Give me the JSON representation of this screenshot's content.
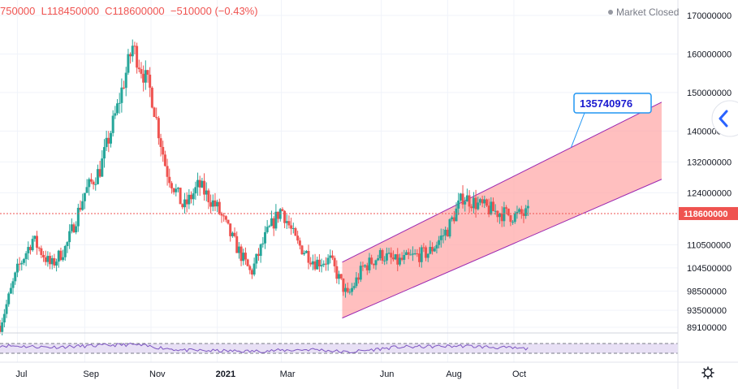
{
  "header": {
    "ohlc_text": "750000  L118450000  C118600000  −510000 (−0.43%)",
    "market_status": "Market Closed"
  },
  "colors": {
    "up": "#26a69a",
    "down": "#ef5350",
    "channel_fill": "#ffaaaa",
    "channel_line": "#9c27b0",
    "rsi_line": "#7e57c2",
    "rsi_band": "#e8e0f5",
    "last_price": "#ef5350",
    "callout_border": "#2196f3"
  },
  "icons": {
    "nav_button": "chevron-left-icon",
    "settings": "gear-icon",
    "status_dot": "dot-icon"
  },
  "chart_data": {
    "type": "candlestick",
    "symbol_last": 118600000,
    "y_axis": {
      "ylim": [
        88500000,
        172000000
      ],
      "ticks": [
        {
          "value": 170000000,
          "label": "170000000"
        },
        {
          "value": 160000000,
          "label": "160000000"
        },
        {
          "value": 150000000,
          "label": "150000000"
        },
        {
          "value": 140000000,
          "label": "140000000"
        },
        {
          "value": 132000000,
          "label": "132000000"
        },
        {
          "value": 124000000,
          "label": "124000000"
        },
        {
          "value": 110500000,
          "label": "110500000"
        },
        {
          "value": 104500000,
          "label": "104500000"
        },
        {
          "value": 98500000,
          "label": "98500000"
        },
        {
          "value": 93500000,
          "label": "93500000"
        },
        {
          "value": 89100000,
          "label": "89100000"
        }
      ]
    },
    "x_axis": {
      "labels": [
        "Jul",
        "Sep",
        "Nov",
        "2021",
        "Mar",
        "Jun",
        "Aug",
        "Oct"
      ],
      "start": "2020-06-15",
      "end": "2022-03-01"
    },
    "last_price_label": "118600000",
    "trend_channel": {
      "start": {
        "date": "2021-04-26",
        "upper": 106000000,
        "lower": 91500000
      },
      "end": {
        "date": "2022-02-14",
        "upper": 147500000,
        "lower": 127500000
      },
      "callout_value": "135740976"
    },
    "monthly_points": [
      {
        "date": "2020-06-15",
        "price": 89500000
      },
      {
        "date": "2020-07-01",
        "price": 104000000
      },
      {
        "date": "2020-07-15",
        "price": 112000000
      },
      {
        "date": "2020-08-01",
        "price": 105000000
      },
      {
        "date": "2020-08-15",
        "price": 110000000
      },
      {
        "date": "2020-09-01",
        "price": 124000000
      },
      {
        "date": "2020-09-15",
        "price": 130000000
      },
      {
        "date": "2020-10-01",
        "price": 146000000
      },
      {
        "date": "2020-10-15",
        "price": 162000000
      },
      {
        "date": "2020-11-01",
        "price": 150000000
      },
      {
        "date": "2020-11-15",
        "price": 130000000
      },
      {
        "date": "2020-12-01",
        "price": 120000000
      },
      {
        "date": "2020-12-15",
        "price": 126000000
      },
      {
        "date": "2021-01-01",
        "price": 120000000
      },
      {
        "date": "2021-01-15",
        "price": 112000000
      },
      {
        "date": "2021-02-01",
        "price": 103000000
      },
      {
        "date": "2021-02-15",
        "price": 113000000
      },
      {
        "date": "2021-03-01",
        "price": 120000000
      },
      {
        "date": "2021-03-15",
        "price": 111000000
      },
      {
        "date": "2021-04-01",
        "price": 106000000
      },
      {
        "date": "2021-04-15",
        "price": 106500000
      },
      {
        "date": "2021-05-01",
        "price": 97000000
      },
      {
        "date": "2021-05-15",
        "price": 104500000
      },
      {
        "date": "2021-06-01",
        "price": 108000000
      },
      {
        "date": "2021-06-15",
        "price": 106000000
      },
      {
        "date": "2021-07-01",
        "price": 107500000
      },
      {
        "date": "2021-07-15",
        "price": 108500000
      },
      {
        "date": "2021-08-01",
        "price": 114500000
      },
      {
        "date": "2021-08-15",
        "price": 123000000
      },
      {
        "date": "2021-09-01",
        "price": 120500000
      },
      {
        "date": "2021-09-15",
        "price": 119000000
      },
      {
        "date": "2021-10-01",
        "price": 118000000
      },
      {
        "date": "2021-10-15",
        "price": 118600000
      }
    ],
    "rsi_panel": {
      "ylim": [
        0,
        100
      ],
      "band": [
        30,
        70
      ],
      "monthly_points": [
        {
          "date": "2020-06-15",
          "value": 62
        },
        {
          "date": "2020-08-01",
          "value": 55
        },
        {
          "date": "2020-10-15",
          "value": 66
        },
        {
          "date": "2020-12-01",
          "value": 42
        },
        {
          "date": "2021-02-01",
          "value": 38
        },
        {
          "date": "2021-04-01",
          "value": 46
        },
        {
          "date": "2021-05-01",
          "value": 34
        },
        {
          "date": "2021-06-15",
          "value": 55
        },
        {
          "date": "2021-08-15",
          "value": 60
        },
        {
          "date": "2021-10-15",
          "value": 48
        }
      ]
    }
  }
}
